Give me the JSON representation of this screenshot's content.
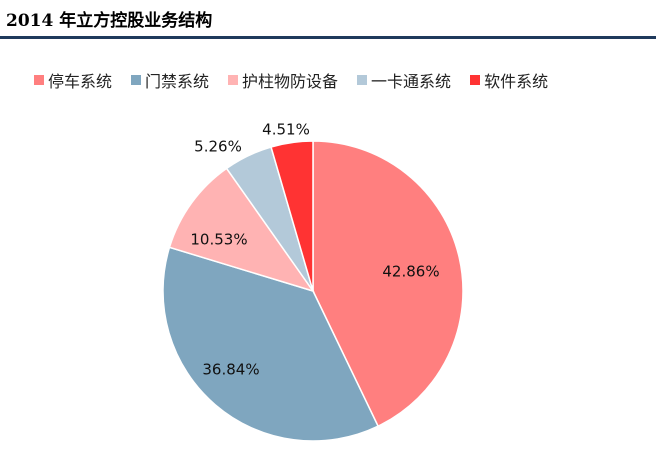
{
  "title": "2014 年立方控股业务结构",
  "chart_data": {
    "type": "pie",
    "categories": [
      "停车系统",
      "门禁系统",
      "护柱物防设备",
      "一卡通系统",
      "软件系统"
    ],
    "values": [
      42.86,
      36.84,
      10.53,
      5.26,
      4.51
    ],
    "data_labels": [
      "42.86%",
      "36.84%",
      "10.53%",
      "5.26%",
      "4.51%"
    ],
    "colors": [
      "#ff7f7f",
      "#7fa6bf",
      "#ffb3b3",
      "#b3c9d9",
      "#ff3333"
    ],
    "legend_position": "top",
    "start_angle_deg": 0,
    "direction": "clockwise"
  }
}
